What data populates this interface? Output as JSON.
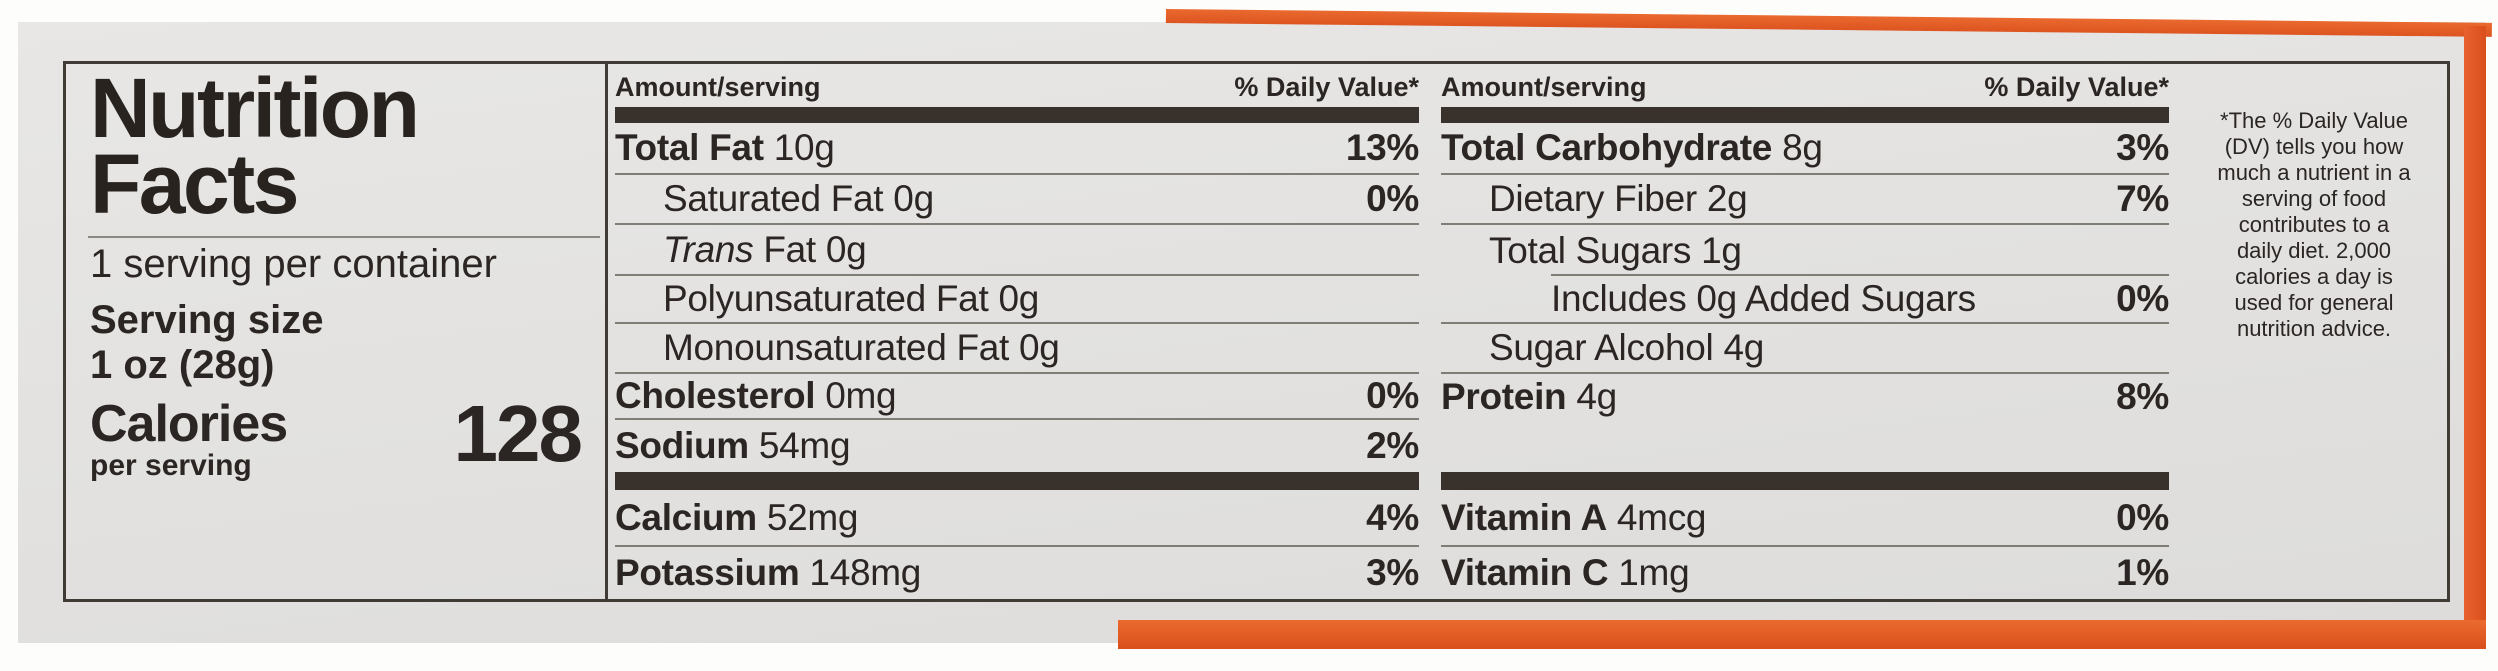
{
  "panel": {
    "title": "Nutrition\nFacts",
    "servings": "1 serving per container",
    "serving_size_label": "Serving size",
    "serving_size_value": "1 oz (28g)",
    "calories_label": "Calories",
    "calories_sublabel": "per serving",
    "calories_value": "128"
  },
  "columns": [
    {
      "header_amount": "Amount/serving",
      "header_dv": "% Daily Value*",
      "rows": [
        {
          "name": "Total Fat",
          "amount": "10g",
          "dv": "13%"
        },
        {
          "name": "Saturated Fat",
          "amount": "0g",
          "dv": "0%"
        },
        {
          "name": "Trans",
          "amount": "Fat 0g",
          "dv": ""
        },
        {
          "name": "Polyunsaturated Fat",
          "amount": "0g",
          "dv": ""
        },
        {
          "name": "Monounsaturated Fat",
          "amount": "0g",
          "dv": ""
        },
        {
          "name": "Cholesterol",
          "amount": "0mg",
          "dv": "0%"
        },
        {
          "name": "Sodium",
          "amount": "54mg",
          "dv": "2%"
        },
        {
          "name": "Calcium",
          "amount": "52mg",
          "dv": "4%"
        },
        {
          "name": "Potassium",
          "amount": "148mg",
          "dv": "3%"
        }
      ]
    },
    {
      "header_amount": "Amount/serving",
      "header_dv": "% Daily Value*",
      "rows": [
        {
          "name": "Total Carbohydrate",
          "amount": "8g",
          "dv": "3%"
        },
        {
          "name": "Dietary Fiber",
          "amount": "2g",
          "dv": "7%"
        },
        {
          "name": "Total Sugars",
          "amount": "1g",
          "dv": ""
        },
        {
          "name": "Includes 0g Added Sugars",
          "amount": "",
          "dv": "0%"
        },
        {
          "name": "Sugar Alcohol",
          "amount": "4g",
          "dv": ""
        },
        {
          "name": "Protein",
          "amount": "4g",
          "dv": "8%"
        },
        {
          "name": "Vitamin A",
          "amount": "4mcg",
          "dv": "0%"
        },
        {
          "name": "Vitamin C",
          "amount": "1mg",
          "dv": "1%"
        }
      ]
    }
  ],
  "footnote": "*The % Daily Value\n(DV) tells you how\nmuch a nutrient in a\nserving of food\ncontributes to a\ndaily diet. 2,000\ncalories a day is\nused for general\nnutrition advice.",
  "colors": {
    "package_orange": "#e25a22",
    "label_background": "#e3e2e0",
    "heavy_bar": "#39312b",
    "text": "#2b2623"
  }
}
